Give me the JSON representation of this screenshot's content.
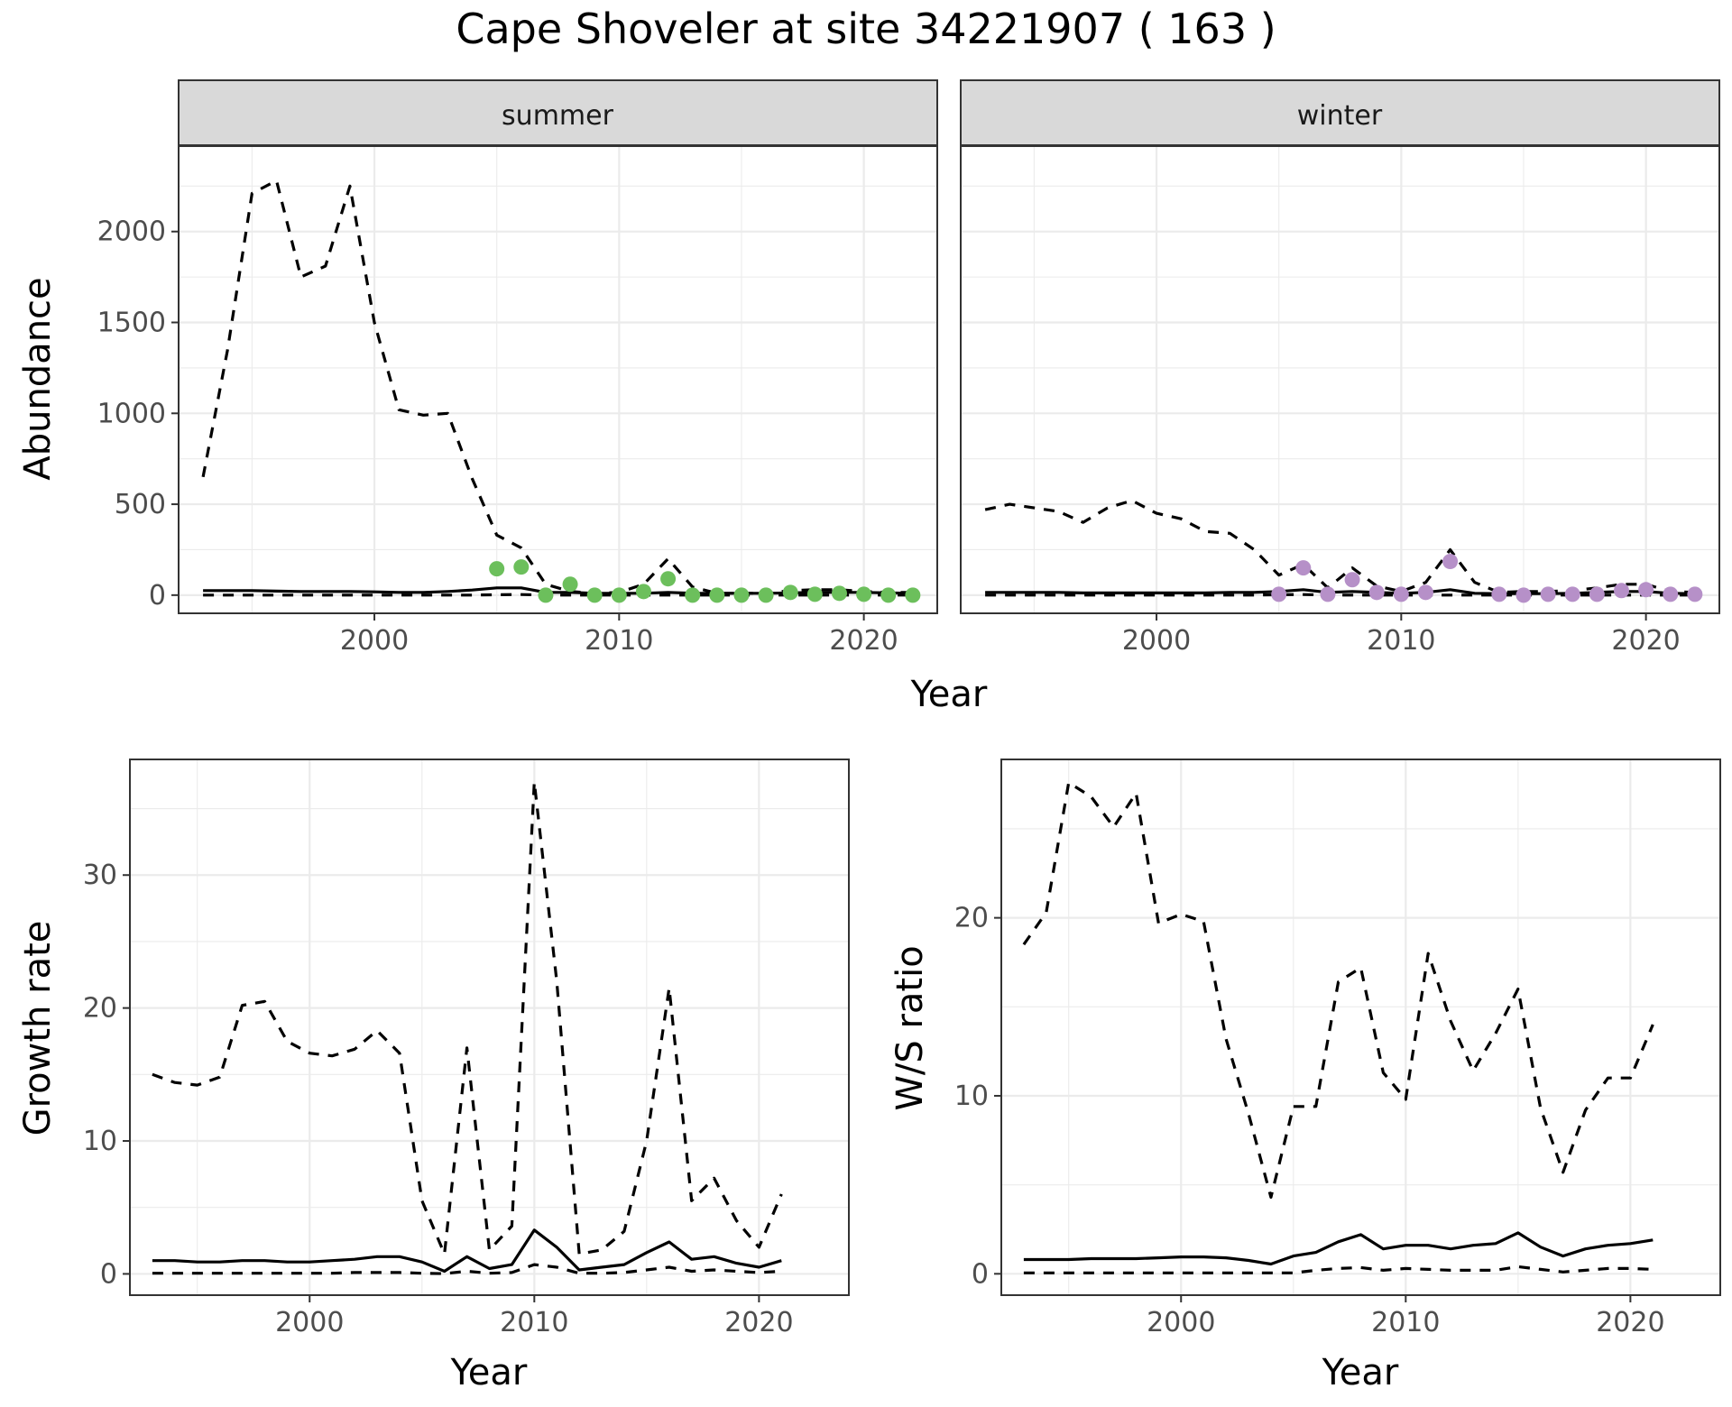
{
  "title": "Cape Shoveler at site 34221907 ( 163 )",
  "colors": {
    "summer_points": "#6cbf5c",
    "winter_points": "#b690c8",
    "lines": "#000000"
  },
  "chart_data": [
    {
      "type": "line",
      "panel": "summer",
      "strip_label": "summer",
      "ylabel": "Abundance",
      "xlabel": "Year",
      "xlim": [
        1992,
        2023
      ],
      "ylim": [
        -100,
        2470
      ],
      "x_ticks": [
        2000,
        2010,
        2020
      ],
      "y_ticks": [
        0,
        500,
        1000,
        1500,
        2000
      ],
      "grid": true,
      "x": [
        1993,
        1994,
        1995,
        1996,
        1997,
        1998,
        1999,
        2000,
        2001,
        2002,
        2003,
        2004,
        2005,
        2006,
        2007,
        2008,
        2009,
        2010,
        2011,
        2012,
        2013,
        2014,
        2015,
        2016,
        2017,
        2018,
        2019,
        2020,
        2021,
        2022
      ],
      "series": [
        {
          "style": "dashed",
          "values": [
            650,
            1350,
            2210,
            2280,
            1750,
            1810,
            2250,
            1500,
            1020,
            990,
            1000,
            640,
            330,
            260,
            60,
            20,
            10,
            15,
            60,
            200,
            45,
            10,
            10,
            10,
            25,
            30,
            30,
            20,
            15,
            15
          ]
        },
        {
          "style": "solid",
          "values": [
            25,
            25,
            25,
            22,
            20,
            20,
            20,
            18,
            15,
            15,
            20,
            28,
            40,
            40,
            15,
            15,
            10,
            10,
            10,
            15,
            10,
            10,
            10,
            10,
            12,
            15,
            15,
            15,
            12,
            10
          ]
        },
        {
          "style": "dashed",
          "values": [
            0,
            0,
            0,
            0,
            0,
            0,
            0,
            0,
            0,
            0,
            0,
            0,
            2,
            3,
            0,
            0,
            0,
            0,
            0,
            0,
            0,
            0,
            0,
            0,
            0,
            0,
            0,
            0,
            0,
            0
          ]
        }
      ],
      "points": {
        "x": [
          2005,
          2006,
          2007,
          2008,
          2009,
          2010,
          2011,
          2012,
          2013,
          2014,
          2015,
          2016,
          2017,
          2018,
          2019,
          2020,
          2021,
          2022
        ],
        "y": [
          145,
          155,
          0,
          60,
          0,
          0,
          20,
          90,
          0,
          0,
          0,
          0,
          15,
          5,
          10,
          5,
          0,
          0
        ]
      }
    },
    {
      "type": "line",
      "panel": "winter",
      "strip_label": "winter",
      "xlabel": "Year",
      "xlim": [
        1992,
        2023
      ],
      "ylim": [
        -100,
        2470
      ],
      "x_ticks": [
        2000,
        2010,
        2020
      ],
      "grid": true,
      "x": [
        1993,
        1994,
        1995,
        1996,
        1997,
        1998,
        1999,
        2000,
        2001,
        2002,
        2003,
        2004,
        2005,
        2006,
        2007,
        2008,
        2009,
        2010,
        2011,
        2012,
        2013,
        2014,
        2015,
        2016,
        2017,
        2018,
        2019,
        2020,
        2021,
        2022
      ],
      "series": [
        {
          "style": "dashed",
          "values": [
            470,
            500,
            480,
            460,
            400,
            480,
            520,
            450,
            420,
            350,
            340,
            250,
            110,
            170,
            40,
            150,
            50,
            20,
            70,
            250,
            70,
            15,
            20,
            20,
            25,
            40,
            60,
            60,
            20,
            15
          ]
        },
        {
          "style": "solid",
          "values": [
            15,
            15,
            15,
            15,
            12,
            12,
            12,
            12,
            12,
            12,
            15,
            15,
            20,
            30,
            15,
            20,
            15,
            10,
            15,
            30,
            10,
            8,
            8,
            8,
            10,
            15,
            20,
            20,
            10,
            8
          ]
        },
        {
          "style": "dashed",
          "values": [
            0,
            0,
            0,
            0,
            0,
            0,
            0,
            0,
            0,
            0,
            0,
            0,
            2,
            3,
            0,
            0,
            0,
            0,
            0,
            0,
            0,
            0,
            0,
            0,
            0,
            0,
            0,
            0,
            0,
            0
          ]
        }
      ],
      "points": {
        "x": [
          2005,
          2006,
          2007,
          2008,
          2009,
          2010,
          2011,
          2012,
          2014,
          2015,
          2016,
          2017,
          2018,
          2019,
          2020,
          2021,
          2022
        ],
        "y": [
          5,
          150,
          5,
          85,
          15,
          5,
          15,
          185,
          5,
          0,
          5,
          5,
          5,
          25,
          30,
          5,
          5
        ]
      }
    },
    {
      "type": "line",
      "panel": "growth",
      "ylabel": "Growth rate",
      "xlabel": "Year",
      "xlim": [
        1992,
        2024
      ],
      "ylim": [
        -1.6,
        38.7
      ],
      "x_ticks": [
        2000,
        2010,
        2020
      ],
      "y_ticks": [
        0,
        10,
        20,
        30
      ],
      "grid": true,
      "x": [
        1993,
        1994,
        1995,
        1996,
        1997,
        1998,
        1999,
        2000,
        2001,
        2002,
        2003,
        2004,
        2005,
        2006,
        2007,
        2008,
        2009,
        2010,
        2011,
        2012,
        2013,
        2014,
        2015,
        2016,
        2017,
        2018,
        2019,
        2020,
        2021
      ],
      "series": [
        {
          "style": "dashed",
          "values": [
            15,
            14.4,
            14.2,
            14.8,
            20.2,
            20.5,
            17.5,
            16.6,
            16.4,
            16.9,
            18.3,
            16.6,
            5.5,
            1.5,
            17,
            1.8,
            3.6,
            37,
            22,
            1.5,
            1.8,
            3.2,
            10,
            21.5,
            5.5,
            7.2,
            4,
            2,
            6
          ]
        },
        {
          "style": "solid",
          "values": [
            1,
            1,
            0.9,
            0.9,
            1,
            1,
            0.9,
            0.9,
            1,
            1.1,
            1.3,
            1.3,
            0.9,
            0.2,
            1.3,
            0.4,
            0.7,
            3.3,
            2,
            0.3,
            0.5,
            0.7,
            1.6,
            2.4,
            1.1,
            1.3,
            0.8,
            0.5,
            1
          ]
        },
        {
          "style": "dashed",
          "values": [
            0.05,
            0.05,
            0.05,
            0.05,
            0.05,
            0.05,
            0.05,
            0.05,
            0.05,
            0.1,
            0.1,
            0.1,
            0.05,
            0.02,
            0.2,
            0.05,
            0.1,
            0.7,
            0.5,
            0.05,
            0.05,
            0.1,
            0.3,
            0.5,
            0.2,
            0.3,
            0.2,
            0.1,
            0.2
          ]
        }
      ]
    },
    {
      "type": "line",
      "panel": "ratio",
      "ylabel": "W/S ratio",
      "xlabel": "Year",
      "xlim": [
        1992,
        2024
      ],
      "ylim": [
        -1.2,
        28.9
      ],
      "x_ticks": [
        2000,
        2010,
        2020
      ],
      "y_ticks": [
        0,
        10,
        20
      ],
      "grid": true,
      "x": [
        1993,
        1994,
        1995,
        1996,
        1997,
        1998,
        1999,
        2000,
        2001,
        2002,
        2003,
        2004,
        2005,
        2006,
        2007,
        2008,
        2009,
        2010,
        2011,
        2012,
        2013,
        2014,
        2015,
        2016,
        2017,
        2018,
        2019,
        2020,
        2021
      ],
      "series": [
        {
          "style": "dashed",
          "values": [
            18.5,
            20.3,
            27.6,
            26.8,
            25.1,
            27,
            19.7,
            20.2,
            19.8,
            13.2,
            9,
            4.3,
            9.4,
            9.4,
            16.4,
            17.2,
            11.3,
            9.8,
            18,
            14.2,
            11.4,
            13.5,
            16,
            9.3,
            5.7,
            9.2,
            11,
            11,
            14
          ]
        },
        {
          "style": "solid",
          "values": [
            0.8,
            0.8,
            0.8,
            0.85,
            0.85,
            0.85,
            0.9,
            0.95,
            0.95,
            0.9,
            0.75,
            0.55,
            1,
            1.2,
            1.8,
            2.2,
            1.4,
            1.6,
            1.6,
            1.4,
            1.6,
            1.7,
            2.3,
            1.5,
            1,
            1.4,
            1.6,
            1.7,
            1.9
          ]
        },
        {
          "style": "dashed",
          "values": [
            0.05,
            0.05,
            0.05,
            0.05,
            0.05,
            0.05,
            0.05,
            0.05,
            0.05,
            0.05,
            0.05,
            0.05,
            0.05,
            0.2,
            0.3,
            0.35,
            0.2,
            0.3,
            0.25,
            0.2,
            0.2,
            0.2,
            0.4,
            0.25,
            0.1,
            0.2,
            0.3,
            0.3,
            0.25
          ]
        }
      ]
    }
  ]
}
